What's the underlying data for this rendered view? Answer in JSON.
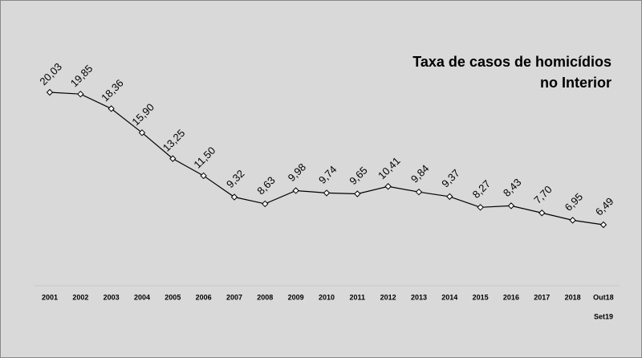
{
  "chart_data": {
    "type": "line",
    "title": [
      "Taxa de casos de homicídios",
      "no Interior"
    ],
    "categories": [
      "2001",
      "2002",
      "2003",
      "2004",
      "2005",
      "2006",
      "2007",
      "2008",
      "2009",
      "2010",
      "2011",
      "2012",
      "2013",
      "2014",
      "2015",
      "2016",
      "2017",
      "2018",
      "Out18"
    ],
    "annotations": [
      "Set19"
    ],
    "series": [
      {
        "name": "Taxa",
        "color": "#000000",
        "values": [
          20.03,
          19.85,
          18.36,
          15.9,
          13.25,
          11.5,
          9.32,
          8.63,
          9.98,
          9.74,
          9.65,
          10.41,
          9.84,
          9.37,
          8.27,
          8.43,
          7.7,
          6.95,
          6.49
        ],
        "value_labels": [
          "20,03",
          "19,85",
          "18,36",
          "15,90",
          "13,25",
          "11,50",
          "9,32",
          "8,63",
          "9,98",
          "9,74",
          "9,65",
          "10,41",
          "9,84",
          "9,37",
          "8,27",
          "8,43",
          "7,70",
          "6,95",
          "6,49"
        ]
      }
    ]
  }
}
